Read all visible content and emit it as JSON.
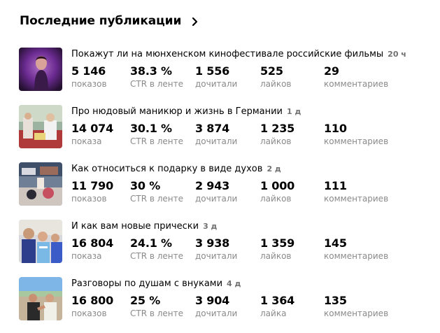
{
  "header": {
    "title": "Последние публикации",
    "chevron_icon": "chevron-right-icon"
  },
  "publications": [
    {
      "title": "Покажут ли на мюнхенском кинофестивале российские фильмы",
      "age": "20 ч",
      "stats": [
        {
          "value": "5 146",
          "label": "показов"
        },
        {
          "value": "38.3 %",
          "label": "CTR в ленте"
        },
        {
          "value": "1 556",
          "label": "дочитали"
        },
        {
          "value": "525",
          "label": "лайков"
        },
        {
          "value": "29",
          "label": "комментариев"
        }
      ]
    },
    {
      "title": "Про нюдовый маникюр и жизнь в Германии",
      "age": "1 д",
      "stats": [
        {
          "value": "14 074",
          "label": "показа"
        },
        {
          "value": "30.1 %",
          "label": "CTR в ленте"
        },
        {
          "value": "3 874",
          "label": "дочитали"
        },
        {
          "value": "1 235",
          "label": "лайков"
        },
        {
          "value": "110",
          "label": "комментариев"
        }
      ]
    },
    {
      "title": "Как относиться к подарку в виде духов",
      "age": "2 д",
      "stats": [
        {
          "value": "11 790",
          "label": "показов"
        },
        {
          "value": "30 %",
          "label": "CTR в ленте"
        },
        {
          "value": "2 943",
          "label": "дочитали"
        },
        {
          "value": "1 000",
          "label": "лайков"
        },
        {
          "value": "111",
          "label": "комментариев"
        }
      ]
    },
    {
      "title": "И как вам новые прически",
      "age": "3 д",
      "stats": [
        {
          "value": "16 804",
          "label": "показа"
        },
        {
          "value": "24.1 %",
          "label": "CTR в ленте"
        },
        {
          "value": "3 938",
          "label": "дочитали"
        },
        {
          "value": "1 359",
          "label": "лайков"
        },
        {
          "value": "145",
          "label": "комментариев"
        }
      ]
    },
    {
      "title": "Разговоры по душам с внуками",
      "age": "4 д",
      "stats": [
        {
          "value": "16 800",
          "label": "показов"
        },
        {
          "value": "25 %",
          "label": "CTR в ленте"
        },
        {
          "value": "3 904",
          "label": "дочитали"
        },
        {
          "value": "1 364",
          "label": "лайка"
        },
        {
          "value": "135",
          "label": "комментариев"
        }
      ]
    }
  ]
}
